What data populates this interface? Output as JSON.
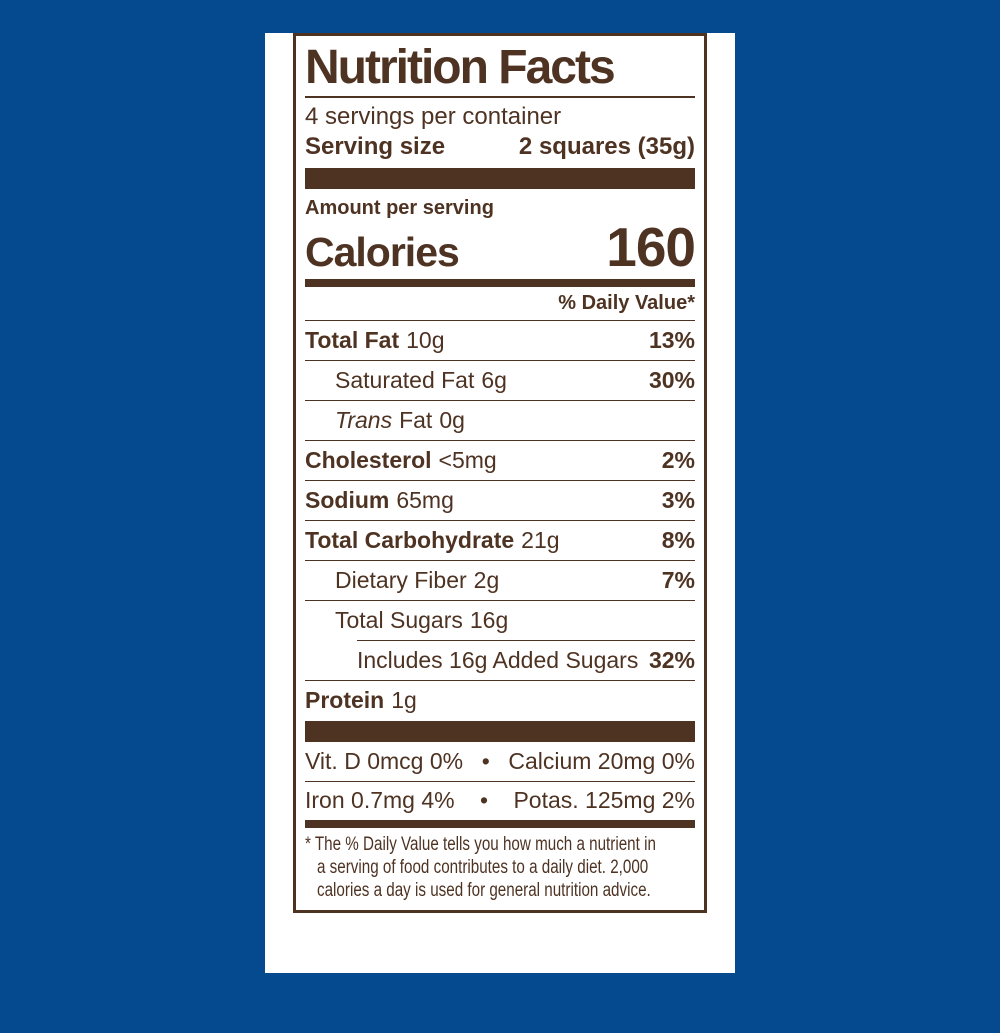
{
  "colors": {
    "background_blue": "#05498f",
    "label_brown": "#4e3323",
    "card_white": "#ffffff"
  },
  "label": {
    "title": "Nutrition Facts",
    "servings_per_container": "4 servings per container",
    "serving_size": {
      "label": "Serving size",
      "value": "2 squares (35g)"
    },
    "amount_per_serving": "Amount per serving",
    "calories": {
      "label": "Calories",
      "value": "160"
    },
    "daily_value_header": "% Daily Value*",
    "rows": [
      {
        "name": "Total Fat",
        "amount": "10g",
        "dv": "13%"
      },
      {
        "name": "Saturated Fat",
        "amount": "6g",
        "dv": "30%"
      },
      {
        "name_italic": "Trans",
        "name": "Fat",
        "amount": "0g",
        "dv": ""
      },
      {
        "name": "Cholesterol",
        "amount": "<5mg",
        "dv": "2%"
      },
      {
        "name": "Sodium",
        "amount": "65mg",
        "dv": "3%"
      },
      {
        "name": "Total Carbohydrate",
        "amount": "21g",
        "dv": "8%"
      },
      {
        "name": "Dietary Fiber",
        "amount": "2g",
        "dv": "7%"
      },
      {
        "name": "Total Sugars",
        "amount": "16g",
        "dv": ""
      },
      {
        "name": "Includes 16g Added Sugars",
        "amount": "",
        "dv": "32%"
      },
      {
        "name": "Protein",
        "amount": "1g",
        "dv": ""
      }
    ],
    "micronutrients": [
      {
        "left": "Vit. D 0mcg 0%",
        "bullet": "•",
        "right": "Calcium 20mg 0%"
      },
      {
        "left": "Iron 0.7mg 4%",
        "bullet": "•",
        "right": "Potas. 125mg 2%"
      }
    ],
    "footnote_lines": [
      "* The % Daily Value tells you how much a nutrient in",
      "a serving of food contributes to a daily diet. 2,000",
      "calories a day is used for general nutrition advice."
    ]
  }
}
